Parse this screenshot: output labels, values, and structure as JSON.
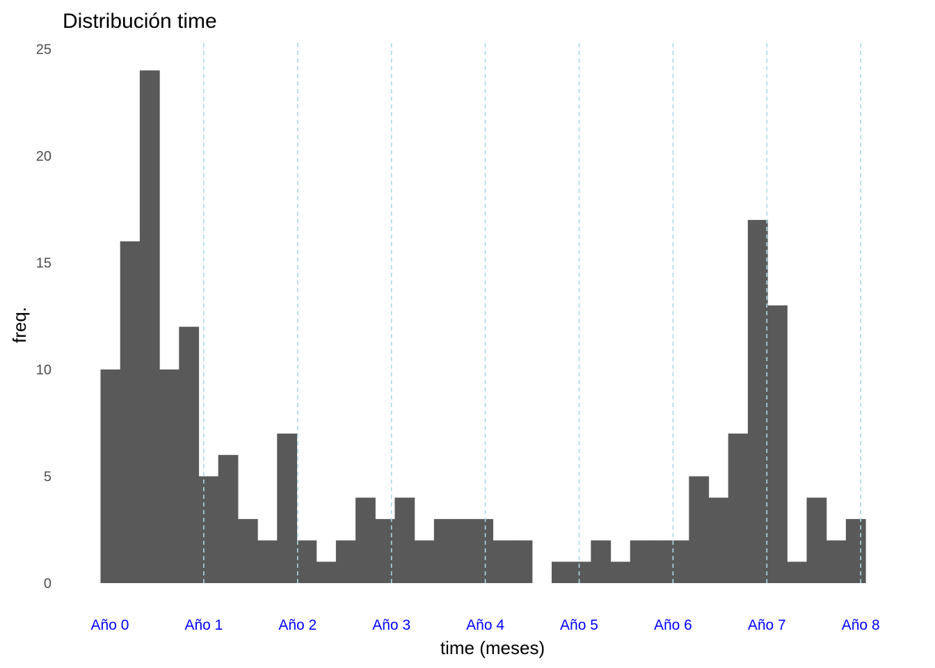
{
  "chart_data": {
    "type": "bar",
    "title": "Distribución time",
    "xlabel": "time (meses)",
    "ylabel": "freq.",
    "ylim": [
      0,
      25
    ],
    "xlim": [
      -1.1,
      8.2
    ],
    "y_ticks": [
      0,
      5,
      10,
      15,
      20,
      25
    ],
    "bin_start": -0.1,
    "bin_width": 0.209,
    "values": [
      10,
      16,
      24,
      10,
      12,
      5,
      6,
      3,
      2,
      7,
      2,
      1,
      2,
      4,
      3,
      4,
      2,
      3,
      3,
      3,
      2,
      2,
      0,
      1,
      1,
      2,
      1,
      2,
      2,
      2,
      5,
      4,
      7,
      17,
      13,
      1,
      4,
      2,
      3
    ],
    "bar_color": "#595959",
    "vlines": {
      "x": [
        1,
        2,
        3,
        4,
        5,
        6,
        7,
        8
      ],
      "color": "#add8e6",
      "style": "dashed"
    },
    "x_ticks": [
      {
        "x": 0,
        "label": "Año 0"
      },
      {
        "x": 1,
        "label": "Año 1"
      },
      {
        "x": 2,
        "label": "Año 2"
      },
      {
        "x": 3,
        "label": "Año 3"
      },
      {
        "x": 4,
        "label": "Año 4"
      },
      {
        "x": 5,
        "label": "Año 5"
      },
      {
        "x": 6,
        "label": "Año 6"
      },
      {
        "x": 7,
        "label": "Año 7"
      },
      {
        "x": 8,
        "label": "Año 8"
      }
    ],
    "x_tick_color": "#0000ff",
    "grid": false,
    "legend": "none"
  }
}
